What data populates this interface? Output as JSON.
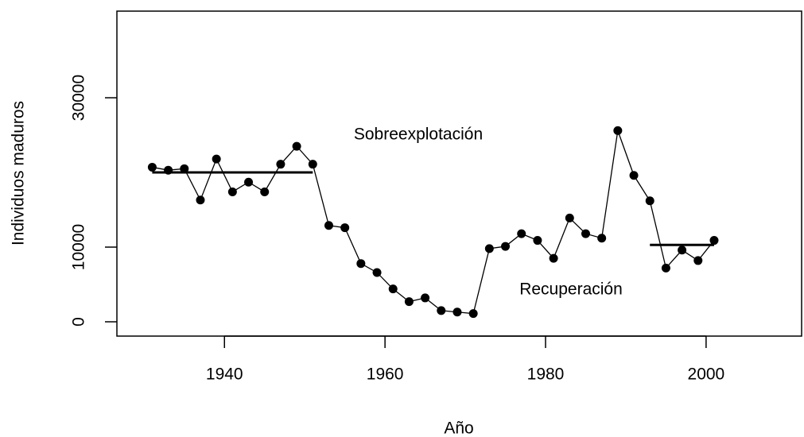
{
  "chart_data": {
    "type": "line",
    "x_label": "Año",
    "y_label": "Individuos maduros",
    "annotations": [
      "Sobreexplotación",
      "Recuperación"
    ],
    "x": [
      1931,
      1933,
      1935,
      1937,
      1939,
      1941,
      1943,
      1945,
      1947,
      1949,
      1951,
      1953,
      1955,
      1957,
      1959,
      1961,
      1963,
      1965,
      1967,
      1969,
      1971,
      1973,
      1975,
      1977,
      1979,
      1981,
      1983,
      1985,
      1987,
      1989,
      1991,
      1993,
      1995,
      1997,
      1999,
      2001
    ],
    "series": [
      {
        "color": "#000000",
        "values": [
          20700,
          20300,
          20500,
          16300,
          21800,
          17400,
          18700,
          17400,
          21100,
          23500,
          21100,
          12900,
          12600,
          7800,
          6600,
          4400,
          2700,
          3200,
          1500,
          1300,
          1100,
          9800,
          10100,
          11800,
          10900,
          8500,
          13900,
          11800,
          11200,
          25600,
          19600,
          16200,
          7200,
          9600,
          8200,
          10900
        ]
      }
    ],
    "segments": [
      {
        "x": [
          1931,
          1951
        ],
        "y": 20000
      },
      {
        "x": [
          1993,
          2001
        ],
        "y": 10300
      }
    ],
    "xlim": [
      1926.6,
      2011.9
    ],
    "ylim": [
      -1915,
      41600
    ],
    "xticks": [
      1940,
      1960,
      1980,
      2000
    ],
    "yticks": [
      0,
      10000,
      30000
    ]
  }
}
